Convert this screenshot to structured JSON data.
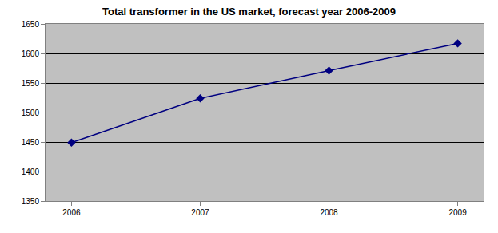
{
  "chart_data": {
    "type": "line",
    "title": "Total transformer in the US market, forecast year 2006-2009",
    "categories": [
      "2006",
      "2007",
      "2008",
      "2009"
    ],
    "values": [
      1449,
      1524,
      1571,
      1617
    ],
    "color": "#000080",
    "marker": "diamond",
    "line_style": "solid",
    "ylim": [
      1350,
      1650
    ],
    "yticks": [
      1350,
      1400,
      1450,
      1500,
      1550,
      1600,
      1650
    ],
    "grid": true
  }
}
